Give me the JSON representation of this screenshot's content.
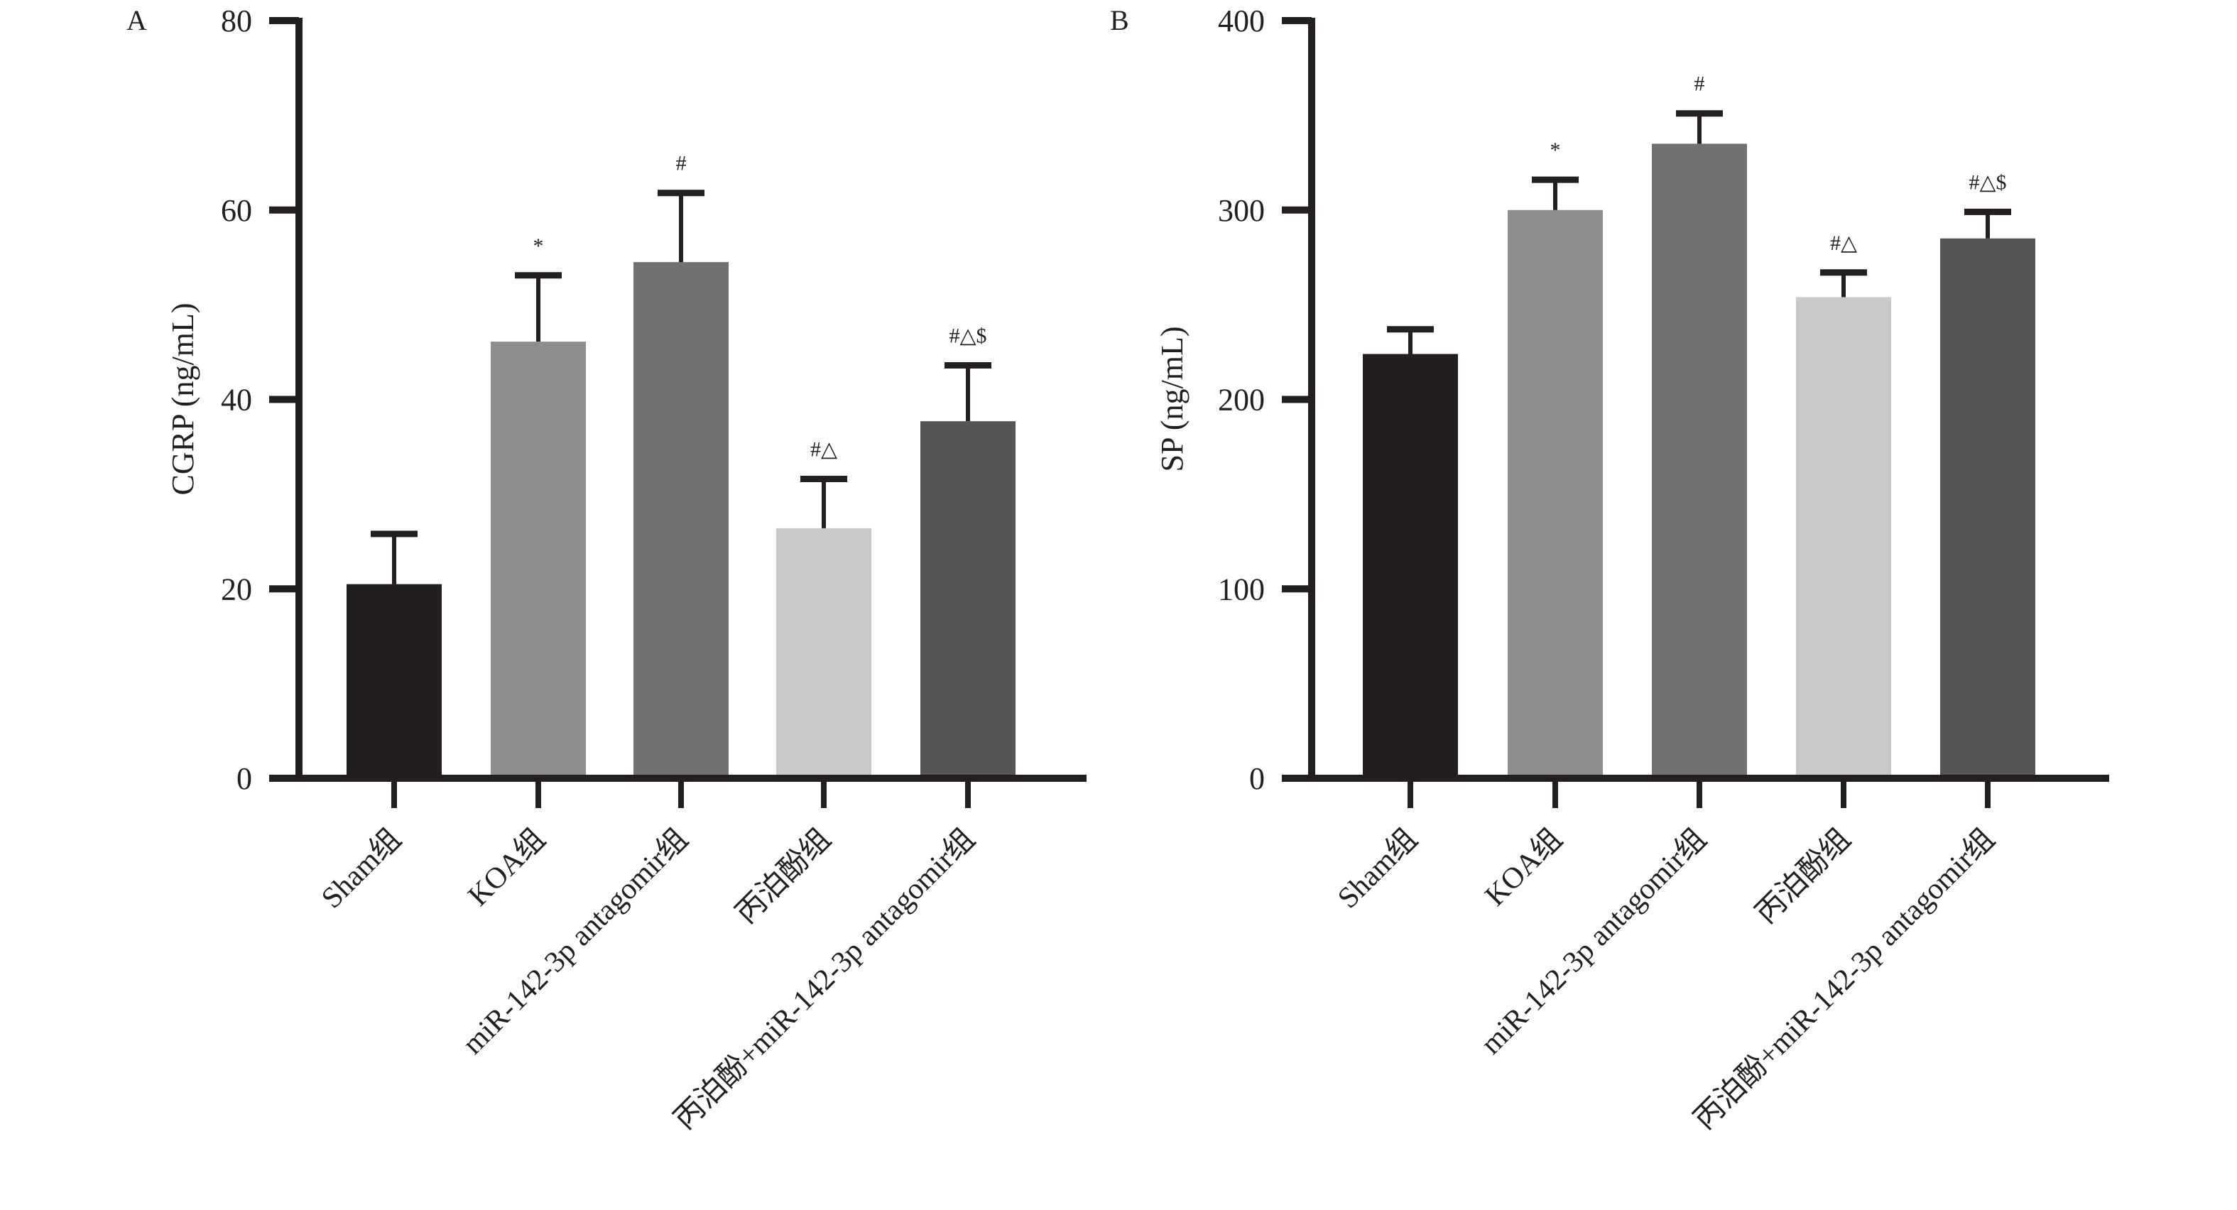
{
  "chart_data": [
    {
      "panel": "A",
      "type": "bar",
      "title": "",
      "xlabel": "",
      "ylabel": "CGRP (ng/mL)",
      "ylim": [
        0,
        80
      ],
      "yticks": [
        0,
        20,
        40,
        60,
        80
      ],
      "categories": [
        "Sham组",
        "KOA组",
        "miR-142-3p antagomir组",
        "丙泊酚组",
        "丙泊酚+miR-142-3p antagomir组"
      ],
      "values": [
        20.5,
        46.1,
        54.5,
        26.4,
        37.7
      ],
      "error_upper": [
        25.8,
        53.1,
        61.8,
        31.6,
        43.6
      ],
      "annotations": [
        "",
        "*",
        "#",
        "#△",
        "#△$"
      ],
      "colors": [
        "#231f20",
        "#8f8e8f",
        "#727071",
        "#c9c9c9",
        "#575553"
      ],
      "grid": false,
      "legend": "none"
    },
    {
      "panel": "B",
      "type": "bar",
      "title": "",
      "xlabel": "",
      "ylabel": "SP (ng/mL)",
      "ylim": [
        0,
        400
      ],
      "yticks": [
        0,
        100,
        200,
        300,
        400
      ],
      "categories": [
        "Sham组",
        "KOA组",
        "miR-142-3p antagomir组",
        "丙泊酚组",
        "丙泊酚+miR-142-3p antagomir组"
      ],
      "values": [
        224,
        300,
        335,
        254,
        285
      ],
      "error_upper": [
        237,
        316,
        351,
        267,
        299
      ],
      "annotations": [
        "",
        "*",
        "#",
        "#△",
        "#△$"
      ],
      "colors": [
        "#231f20",
        "#8f8e8f",
        "#727071",
        "#c9c9c9",
        "#575553"
      ],
      "grid": false,
      "legend": "none"
    }
  ]
}
